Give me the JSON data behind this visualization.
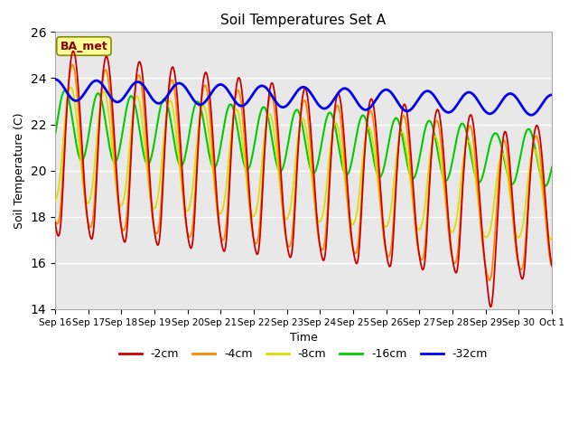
{
  "title": "Soil Temperatures Set A",
  "xlabel": "Time",
  "ylabel": "Soil Temperature (C)",
  "ylim": [
    14,
    26
  ],
  "yticks": [
    14,
    16,
    18,
    20,
    22,
    24,
    26
  ],
  "annotation": "BA_met",
  "colors": {
    "-2cm": "#cc0000",
    "-4cm": "#ff8800",
    "-8cm": "#dddd00",
    "-16cm": "#00cc00",
    "-32cm": "#0000ee"
  },
  "legend_labels": [
    "-2cm",
    "-4cm",
    "-8cm",
    "-16cm",
    "-32cm"
  ],
  "background_color": "#e8e8e8",
  "fig_background": "#ffffff",
  "xtick_labels": [
    "Sep 16",
    "Sep 17",
    "Sep 18",
    "Sep 19",
    "Sep 20",
    "Sep 21",
    "Sep 22",
    "Sep 23",
    "Sep 24",
    "Sep 25",
    "Sep 26",
    "Sep 27",
    "Sep 28",
    "Sep 29",
    "Sep 30",
    "Oct 1"
  ]
}
